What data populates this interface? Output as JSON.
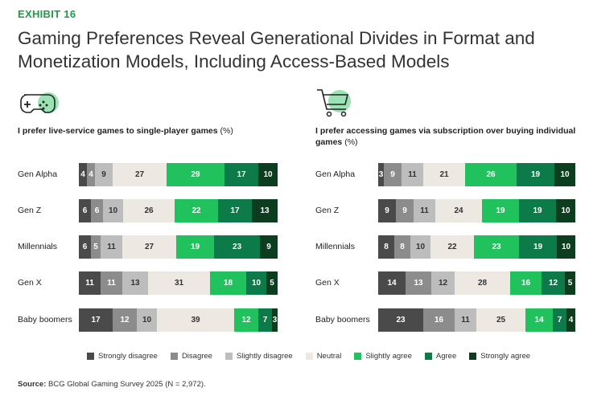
{
  "exhibit_label": "EXHIBIT 16",
  "title": "Gaming Preferences Reveal Generational Divides in Format and Monetization Models, Including Access-Based Models",
  "colors": {
    "strongly_disagree": "#4a4a4a",
    "disagree": "#8c8c8c",
    "slightly_disagree": "#bdbdbd",
    "neutral": "#ede8e2",
    "slightly_agree": "#21c25e",
    "agree": "#0d7a4a",
    "strongly_agree": "#0b3d1e",
    "accent": "#1f9b45"
  },
  "legend": [
    "Strongly disagree",
    "Disagree",
    "Slightly disagree",
    "Neutral",
    "Slightly agree",
    "Agree",
    "Strongly agree"
  ],
  "source_label": "Source:",
  "source_text": "BCG Global Gaming Survey 2025 (N = 2,972).",
  "chart_data": [
    {
      "type": "bar",
      "stacked": true,
      "orientation": "horizontal",
      "icon": "gamepad-icon",
      "title": "I prefer live-service games to single-player games",
      "unit": "(%)",
      "categories": [
        "Gen Alpha",
        "Gen Z",
        "Millennials",
        "Gen X",
        "Baby boomers"
      ],
      "series": [
        {
          "name": "Strongly disagree",
          "values": [
            4,
            6,
            6,
            11,
            17
          ]
        },
        {
          "name": "Disagree",
          "values": [
            4,
            6,
            5,
            11,
            12
          ]
        },
        {
          "name": "Slightly disagree",
          "values": [
            9,
            10,
            11,
            13,
            10
          ]
        },
        {
          "name": "Neutral",
          "values": [
            27,
            26,
            27,
            31,
            39
          ]
        },
        {
          "name": "Slightly agree",
          "values": [
            29,
            22,
            19,
            18,
            12
          ]
        },
        {
          "name": "Agree",
          "values": [
            17,
            17,
            23,
            10,
            7
          ]
        },
        {
          "name": "Strongly agree",
          "values": [
            10,
            13,
            9,
            5,
            3
          ]
        }
      ]
    },
    {
      "type": "bar",
      "stacked": true,
      "orientation": "horizontal",
      "icon": "shopping-cart-icon",
      "title": "I prefer accessing games via subscription over buying individual games",
      "unit": "(%)",
      "categories": [
        "Gen Alpha",
        "Gen Z",
        "Millennials",
        "Gen X",
        "Baby boomers"
      ],
      "series": [
        {
          "name": "Strongly disagree",
          "values": [
            3,
            9,
            8,
            14,
            23
          ]
        },
        {
          "name": "Disagree",
          "values": [
            9,
            9,
            8,
            13,
            16
          ]
        },
        {
          "name": "Slightly disagree",
          "values": [
            11,
            11,
            10,
            12,
            11
          ]
        },
        {
          "name": "Neutral",
          "values": [
            21,
            24,
            22,
            28,
            25
          ]
        },
        {
          "name": "Slightly agree",
          "values": [
            26,
            19,
            23,
            16,
            14
          ]
        },
        {
          "name": "Agree",
          "values": [
            19,
            19,
            19,
            12,
            7
          ]
        },
        {
          "name": "Strongly agree",
          "values": [
            10,
            10,
            10,
            5,
            4
          ]
        }
      ]
    }
  ]
}
